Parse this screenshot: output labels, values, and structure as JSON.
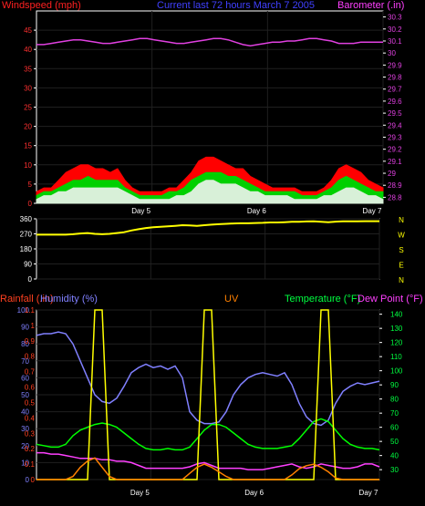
{
  "chart_data": [
    {
      "type": "area",
      "title": "Current last 72 hours March 7 2005",
      "left_label": "Windspeed (mph)",
      "right_label": "Barometer (.in)",
      "x_ticks": [
        "Day 5",
        "Day 6",
        "Day 7"
      ],
      "y_left_ticks": [
        "0",
        "5",
        "10",
        "15",
        "20",
        "25",
        "30",
        "35",
        "40",
        "45"
      ],
      "y_right_ticks": [
        "28.8",
        "28.9",
        "29",
        "29.1",
        "29.2",
        "29.3",
        "29.4",
        "29.5",
        "29.6",
        "29.7",
        "29.8",
        "29.9",
        "30",
        "30.1",
        "30.2",
        "30.3"
      ],
      "ylim_left": [
        0,
        50
      ],
      "ylim_right": [
        28.75,
        30.35
      ],
      "series": [
        {
          "name": "Windspeed (mph)",
          "role": "gust",
          "color": "#ff0000",
          "values": [
            3,
            4,
            4,
            6,
            8,
            9,
            10,
            10,
            9,
            9,
            8,
            9,
            6,
            4,
            3,
            3,
            3,
            3,
            4,
            4,
            6,
            8,
            11,
            12,
            12,
            11,
            10,
            9,
            9,
            7,
            6,
            5,
            4,
            4,
            4,
            4,
            3,
            3,
            3,
            4,
            6,
            9,
            10,
            9,
            8,
            6,
            5,
            4
          ]
        },
        {
          "name": "average",
          "role": "avg",
          "color": "#00d000",
          "values": [
            2,
            3,
            3,
            4,
            5,
            6,
            6,
            7,
            6,
            6,
            6,
            6,
            4,
            3,
            2,
            2,
            2,
            2,
            3,
            3,
            4,
            6,
            7,
            8,
            8,
            8,
            7,
            7,
            6,
            5,
            4,
            3,
            3,
            3,
            3,
            3,
            2,
            2,
            2,
            3,
            4,
            6,
            7,
            6,
            5,
            4,
            3,
            3
          ]
        },
        {
          "name": "lull",
          "role": "lull",
          "color": "#d8f0d8",
          "values": [
            1,
            2,
            2,
            3,
            3,
            4,
            4,
            4,
            4,
            4,
            4,
            4,
            3,
            2,
            1,
            1,
            1,
            1,
            1,
            2,
            2,
            3,
            5,
            6,
            6,
            5,
            5,
            5,
            4,
            3,
            3,
            2,
            2,
            2,
            2,
            1,
            1,
            1,
            1,
            2,
            2,
            3,
            4,
            4,
            3,
            2,
            2,
            1
          ]
        },
        {
          "name": "Barometer (.in)",
          "role": "barometer",
          "color": "#e040e0",
          "values": [
            30.07,
            30.07,
            30.08,
            30.09,
            30.1,
            30.11,
            30.11,
            30.1,
            30.09,
            30.08,
            30.08,
            30.09,
            30.1,
            30.11,
            30.12,
            30.12,
            30.11,
            30.1,
            30.09,
            30.08,
            30.08,
            30.09,
            30.1,
            30.11,
            30.12,
            30.12,
            30.11,
            30.09,
            30.07,
            30.06,
            30.07,
            30.08,
            30.09,
            30.09,
            30.1,
            30.1,
            30.11,
            30.12,
            30.12,
            30.11,
            30.1,
            30.08,
            30.08,
            30.08,
            30.09,
            30.09,
            30.09,
            30.09
          ]
        }
      ]
    },
    {
      "type": "line",
      "title": "",
      "compass_labels": [
        "N",
        "W",
        "S",
        "E",
        "N"
      ],
      "x_ticks": [
        "Day 5",
        "Day 6",
        "Day 7"
      ],
      "y_ticks": [
        "0",
        "90",
        "180",
        "270",
        "360"
      ],
      "ylim": [
        0,
        360
      ],
      "series": [
        {
          "name": "Wind Direction",
          "color": "#ffff00",
          "values": [
            265,
            265,
            265,
            265,
            265,
            268,
            272,
            275,
            270,
            268,
            270,
            275,
            280,
            290,
            298,
            305,
            310,
            312,
            315,
            318,
            322,
            320,
            318,
            322,
            325,
            328,
            330,
            332,
            333,
            333,
            335,
            336,
            338,
            338,
            340,
            342,
            342,
            344,
            345,
            342,
            340,
            343,
            345,
            345,
            345,
            346,
            346,
            346
          ]
        }
      ]
    },
    {
      "type": "line",
      "title": "",
      "labels": {
        "rainfall": "Rainfall (.in)",
        "humidity": "Humidity (%)",
        "uv": "UV",
        "temperature": "Temperature (°F)",
        "dewpoint": "Dew Point (°F)"
      },
      "x_ticks": [
        "Day 5",
        "Day 6",
        "Day 7"
      ],
      "y_left_ticks": [
        "0",
        "10",
        "20",
        "30",
        "40",
        "50",
        "60",
        "70",
        "80",
        "90",
        "100"
      ],
      "y_rain_ticks": [
        "0",
        "0.1",
        "0.2",
        "0.3",
        "0.4",
        "0.5",
        "0.6",
        "0.7",
        "0.8",
        "0.9",
        "1",
        "1.1"
      ],
      "y_right_ticks": [
        "30",
        "40",
        "50",
        "60",
        "70",
        "80",
        "90",
        "100",
        "110",
        "120",
        "130",
        "140"
      ],
      "ylim_left": [
        0,
        100
      ],
      "ylim_right": [
        23,
        143
      ],
      "ylim_rain": [
        0,
        1.1
      ],
      "series": [
        {
          "name": "Humidity (%)",
          "color": "#8080ff",
          "values": [
            85,
            86,
            86,
            87,
            86,
            80,
            70,
            60,
            50,
            46,
            45,
            48,
            55,
            63,
            66,
            68,
            66,
            67,
            65,
            67,
            60,
            40,
            35,
            33,
            33,
            34,
            40,
            50,
            56,
            60,
            62,
            63,
            62,
            61,
            63,
            56,
            45,
            37,
            33,
            32,
            35,
            45,
            52,
            55,
            57,
            56,
            57,
            58
          ]
        },
        {
          "name": "Temperature (°F)",
          "color": "#00ff00",
          "values": [
            48,
            47,
            46,
            46,
            48,
            54,
            58,
            60,
            62,
            63,
            62,
            60,
            56,
            52,
            48,
            45,
            44,
            44,
            45,
            44,
            44,
            46,
            52,
            58,
            62,
            62,
            60,
            56,
            52,
            48,
            46,
            45,
            45,
            45,
            46,
            47,
            52,
            58,
            64,
            66,
            64,
            58,
            52,
            48,
            46,
            45,
            45,
            44
          ]
        },
        {
          "name": "Dew Point (°F)",
          "color": "#ff40ff",
          "values": [
            42,
            42,
            41,
            41,
            40,
            39,
            38,
            38,
            38,
            37,
            37,
            36,
            36,
            35,
            33,
            31,
            31,
            31,
            31,
            31,
            31,
            32,
            34,
            35,
            33,
            31,
            31,
            31,
            31,
            30,
            30,
            30,
            31,
            32,
            33,
            34,
            32,
            31,
            32,
            34,
            33,
            32,
            31,
            31,
            32,
            34,
            34,
            32
          ]
        },
        {
          "name": "UV",
          "color": "#ffff00",
          "values": [
            0,
            0,
            0,
            0,
            0,
            0,
            0,
            0,
            1.1,
            1.1,
            0,
            0,
            0,
            0,
            0,
            0,
            0,
            0,
            0,
            0,
            0,
            0,
            0,
            1.1,
            1.1,
            0,
            0,
            0,
            0,
            0,
            0,
            0,
            0,
            0,
            0,
            0,
            0,
            0,
            0,
            1.1,
            1.1,
            0,
            0,
            0,
            0,
            0,
            0,
            0
          ]
        },
        {
          "name": "Rainfall (.in)",
          "color": "#ff8000",
          "values": [
            0,
            0,
            0,
            0,
            0,
            0.02,
            0.08,
            0.12,
            0.14,
            0.08,
            0.02,
            0,
            0,
            0,
            0,
            0,
            0,
            0,
            0,
            0,
            0,
            0.04,
            0.08,
            0.1,
            0.08,
            0.05,
            0.02,
            0,
            0,
            0,
            0,
            0,
            0,
            0,
            0,
            0.03,
            0.07,
            0.09,
            0.1,
            0.08,
            0.05,
            0.01,
            0,
            0,
            0,
            0,
            0,
            0
          ]
        }
      ]
    }
  ]
}
